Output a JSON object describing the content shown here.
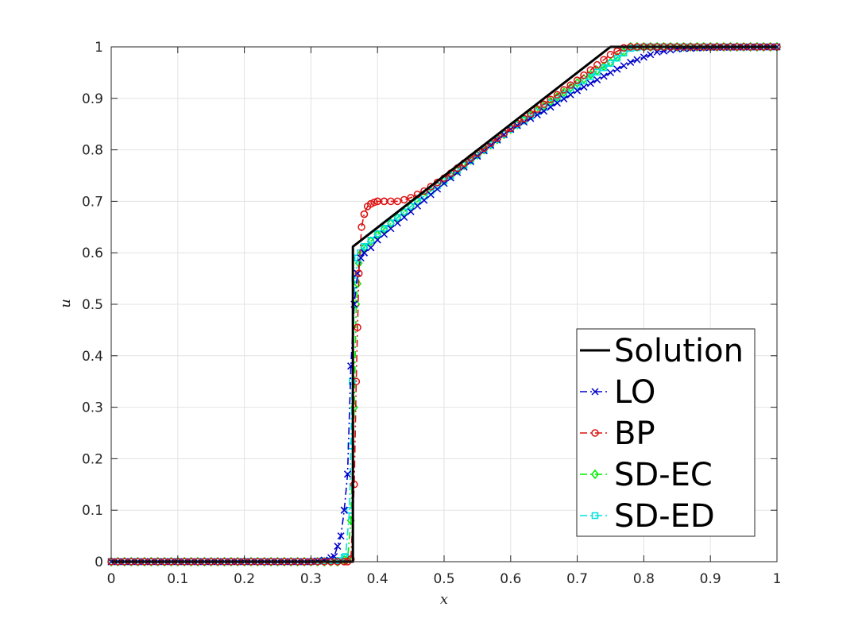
{
  "chart_data": {
    "type": "line",
    "title": "",
    "xlabel": "x",
    "ylabel": "u",
    "xlim": [
      0,
      1
    ],
    "ylim": [
      0,
      1
    ],
    "xticks": [
      "0",
      "0.1",
      "0.2",
      "0.3",
      "0.4",
      "0.5",
      "0.6",
      "0.7",
      "0.8",
      "0.9",
      "1"
    ],
    "yticks": [
      "0",
      "0.1",
      "0.2",
      "0.3",
      "0.4",
      "0.5",
      "0.6",
      "0.7",
      "0.8",
      "0.9",
      "1"
    ],
    "grid": true,
    "legend_position": "bottom-right",
    "series": [
      {
        "name": "Solution",
        "color": "#000000",
        "line_style": "solid",
        "marker": "none",
        "x": [
          0,
          0.363,
          0.363,
          0.75,
          0.75,
          1
        ],
        "y": [
          0,
          0,
          0.612,
          1,
          1,
          1
        ]
      },
      {
        "name": "LO",
        "color": "#0000cc",
        "line_style": "dashdot",
        "marker": "x",
        "x": [
          0,
          0.1,
          0.2,
          0.3,
          0.32,
          0.335,
          0.345,
          0.35,
          0.355,
          0.36,
          0.365,
          0.37,
          0.375,
          0.38,
          0.39,
          0.4,
          0.45,
          0.5,
          0.6,
          0.65,
          0.7,
          0.75,
          0.78,
          0.8,
          0.82,
          0.85,
          0.9,
          1
        ],
        "y": [
          0,
          0,
          0,
          0,
          0.003,
          0.01,
          0.05,
          0.1,
          0.17,
          0.38,
          0.5,
          0.56,
          0.59,
          0.6,
          0.61,
          0.625,
          0.68,
          0.735,
          0.84,
          0.875,
          0.915,
          0.95,
          0.97,
          0.98,
          0.99,
          0.996,
          0.999,
          1
        ]
      },
      {
        "name": "BP",
        "color": "#dd1111",
        "line_style": "dashdot",
        "marker": "o",
        "x": [
          0,
          0.1,
          0.2,
          0.3,
          0.355,
          0.36,
          0.365,
          0.368,
          0.372,
          0.376,
          0.38,
          0.385,
          0.39,
          0.395,
          0.4,
          0.41,
          0.42,
          0.43,
          0.44,
          0.45,
          0.47,
          0.5,
          0.6,
          0.7,
          0.75,
          0.77,
          0.78,
          0.8,
          0.9,
          1
        ],
        "y": [
          0,
          0,
          0,
          0,
          0,
          0.005,
          0.15,
          0.35,
          0.56,
          0.65,
          0.675,
          0.69,
          0.695,
          0.698,
          0.7,
          0.7,
          0.7,
          0.7,
          0.703,
          0.707,
          0.72,
          0.745,
          0.842,
          0.935,
          0.985,
          0.998,
          1,
          1,
          1,
          1
        ]
      },
      {
        "name": "SD-EC",
        "color": "#00ee00",
        "line_style": "dashdot",
        "marker": "diamond",
        "x": [
          0,
          0.1,
          0.2,
          0.3,
          0.34,
          0.355,
          0.36,
          0.365,
          0.368,
          0.372,
          0.376,
          0.38,
          0.4,
          0.45,
          0.5,
          0.6,
          0.7,
          0.75,
          0.77,
          0.78,
          0.8,
          0.9,
          1
        ],
        "y": [
          0,
          0,
          0,
          0,
          0,
          0.005,
          0.08,
          0.3,
          0.5,
          0.58,
          0.6,
          0.61,
          0.635,
          0.69,
          0.74,
          0.84,
          0.93,
          0.97,
          0.99,
          1,
          1,
          1,
          1
        ]
      },
      {
        "name": "SD-ED",
        "color": "#00e0e0",
        "line_style": "dashdot",
        "marker": "square",
        "x": [
          0,
          0.1,
          0.2,
          0.3,
          0.34,
          0.352,
          0.358,
          0.362,
          0.366,
          0.37,
          0.374,
          0.38,
          0.4,
          0.45,
          0.5,
          0.6,
          0.7,
          0.75,
          0.77,
          0.78,
          0.8,
          0.9,
          1
        ],
        "y": [
          0,
          0,
          0,
          0,
          0.002,
          0.01,
          0.1,
          0.35,
          0.55,
          0.59,
          0.6,
          0.612,
          0.637,
          0.69,
          0.74,
          0.84,
          0.925,
          0.968,
          0.988,
          0.997,
          1,
          1,
          1
        ]
      }
    ]
  }
}
